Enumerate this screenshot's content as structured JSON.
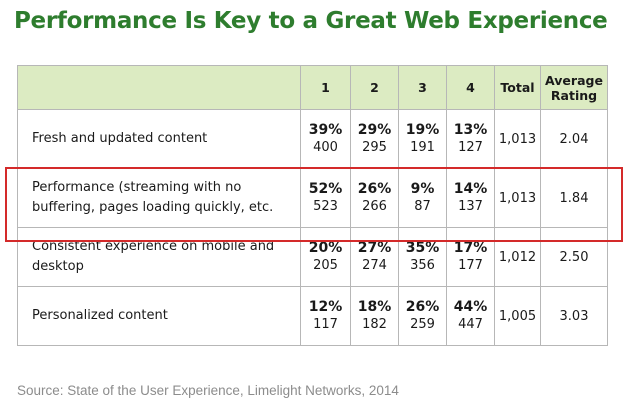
{
  "title": "Performance Is Key to a Great Web Experience",
  "source": "Source: State of the User Experience, Limelight Networks, 2014",
  "colors": {
    "title": "#2e7d2e",
    "header_bg": "#dcebc2",
    "highlight": "#d42a2a",
    "source": "#8c8c8c"
  },
  "chart_data": {
    "type": "table",
    "title": "Performance Is Key to a Great Web Experience",
    "columns": [
      "",
      "1",
      "2",
      "3",
      "4",
      "Total",
      "Average Rating"
    ],
    "rows": [
      {
        "label": "Fresh and updated content",
        "percents": [
          "39%",
          "29%",
          "19%",
          "13%"
        ],
        "counts": [
          "400",
          "295",
          "191",
          "127"
        ],
        "total": "1,013",
        "average": "2.04",
        "highlighted": false
      },
      {
        "label": "Performance (streaming with no buffering, pages loading quickly, etc.",
        "percents": [
          "52%",
          "26%",
          "9%",
          "14%"
        ],
        "counts": [
          "523",
          "266",
          "87",
          "137"
        ],
        "total": "1,013",
        "average": "1.84",
        "highlighted": true
      },
      {
        "label": "Consistent experience on mobile and desktop",
        "percents": [
          "20%",
          "27%",
          "35%",
          "17%"
        ],
        "counts": [
          "205",
          "274",
          "356",
          "177"
        ],
        "total": "1,012",
        "average": "2.50",
        "highlighted": false
      },
      {
        "label": "Personalized content",
        "percents": [
          "12%",
          "18%",
          "26%",
          "44%"
        ],
        "counts": [
          "117",
          "182",
          "259",
          "447"
        ],
        "total": "1,005",
        "average": "3.03",
        "highlighted": false
      }
    ]
  }
}
